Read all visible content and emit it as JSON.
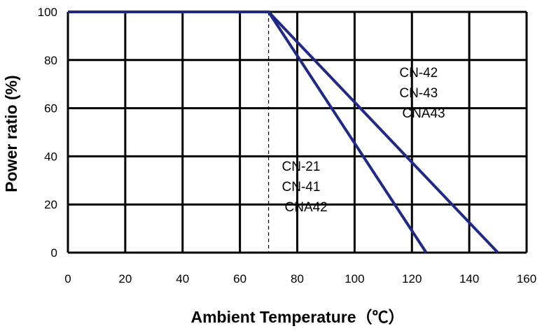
{
  "chart_data": {
    "type": "line",
    "title": "",
    "xlabel": "Ambient Temperature（℃）",
    "ylabel": "Power ratio (%)",
    "xlim": [
      0,
      160
    ],
    "ylim": [
      0,
      100
    ],
    "x_ticks": [
      "0",
      "20",
      "40",
      "60",
      "80",
      "100",
      "120",
      "140",
      "160"
    ],
    "y_ticks": [
      "0",
      "20",
      "40",
      "60",
      "80",
      "100"
    ],
    "grid": true,
    "series_color": "#1f2a80",
    "reference_line": {
      "x": 70,
      "style": "dashed"
    },
    "series": [
      {
        "x": [
          0,
          70,
          125
        ],
        "y": [
          100,
          100,
          0
        ]
      },
      {
        "x": [
          0,
          70,
          150
        ],
        "y": [
          100,
          100,
          0
        ]
      }
    ],
    "annotations": [
      {
        "lines": [
          "CN-21",
          "CN-41",
          "CNA42"
        ],
        "x": 80,
        "y": 34
      },
      {
        "lines": [
          "CN-42",
          "CN-43",
          "CNA43"
        ],
        "x": 121,
        "y": 73
      }
    ]
  }
}
